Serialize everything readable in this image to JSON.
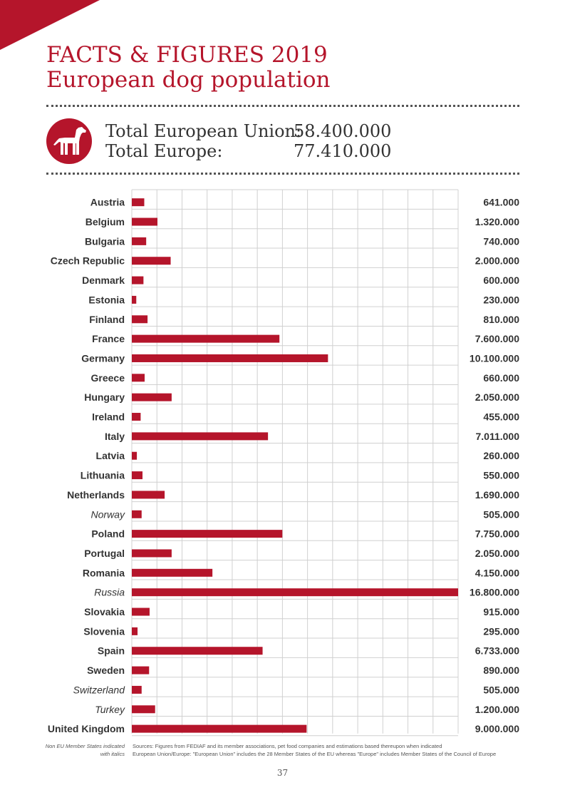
{
  "header": {
    "title_line1": "FACTS & FIGURES 2019",
    "title_line2": "European dog population"
  },
  "totals": {
    "eu_label": "Total European Union:",
    "eu_value": "58.400.000",
    "europe_label": "Total Europe:",
    "europe_value": "77.410.000",
    "icon": "dog-icon"
  },
  "colors": {
    "accent": "#b5152b",
    "grid": "#d0d0d0",
    "text": "#333333"
  },
  "chart_data": {
    "type": "bar",
    "orientation": "horizontal",
    "grid": true,
    "xlim": [
      0,
      16800000
    ],
    "categories": [
      "Austria",
      "Belgium",
      "Bulgaria",
      "Czech Republic",
      "Denmark",
      "Estonia",
      "Finland",
      "France",
      "Germany",
      "Greece",
      "Hungary",
      "Ireland",
      "Italy",
      "Latvia",
      "Lithuania",
      "Netherlands",
      "Norway",
      "Poland",
      "Portugal",
      "Romania",
      "Russia",
      "Slovakia",
      "Slovenia",
      "Spain",
      "Sweden",
      "Switzerland",
      "Turkey",
      "United Kingdom"
    ],
    "italic_categories": [
      "Norway",
      "Russia",
      "Switzerland",
      "Turkey"
    ],
    "values": [
      641000,
      1320000,
      740000,
      2000000,
      600000,
      230000,
      810000,
      7600000,
      10100000,
      660000,
      2050000,
      455000,
      7011000,
      260000,
      550000,
      1690000,
      505000,
      7750000,
      2050000,
      4150000,
      16800000,
      915000,
      295000,
      6733000,
      890000,
      505000,
      1200000,
      9000000
    ],
    "value_labels": [
      "641.000",
      "1.320.000",
      "740.000",
      "2.000.000",
      "600.000",
      "230.000",
      "810.000",
      "7.600.000",
      "10.100.000",
      "660.000",
      "2.050.000",
      "455.000",
      "7.011.000",
      "260.000",
      "550.000",
      "1.690.000",
      "505.000",
      "7.750.000",
      "2.050.000",
      "4.150.000",
      "16.800.000",
      "915.000",
      "295.000",
      "6.733.000",
      "890.000",
      "505.000",
      "1.200.000",
      "9.000.000"
    ]
  },
  "footnotes": {
    "left_line1": "Non EU Member States indicated",
    "left_line2": "with italics",
    "right_line1": "Sources: Figures from FEDIAF and its member associations, pet food companies and estimations based thereupon when indicated",
    "right_line2": "European Union/Europe: \"European Union\" includes the 28 Member States of the EU whereas \"Europe\" includes Member States of the Council of Europe"
  },
  "page_number": "37"
}
